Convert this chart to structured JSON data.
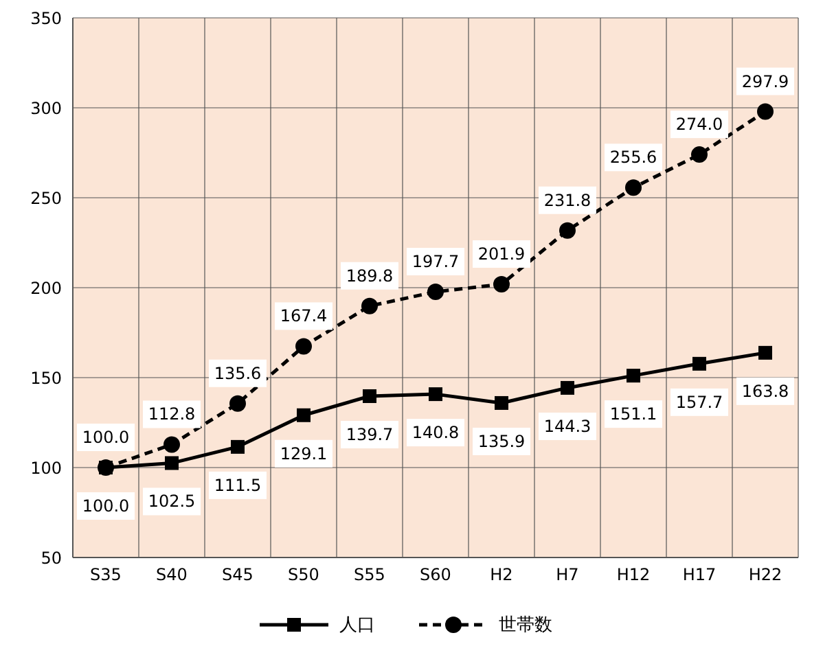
{
  "chart_data": {
    "type": "line",
    "categories": [
      "S35",
      "S40",
      "S45",
      "S50",
      "S55",
      "S60",
      "H2",
      "H7",
      "H12",
      "H17",
      "H22"
    ],
    "series": [
      {
        "name": "人口",
        "color": "#000000",
        "marker": "square",
        "line_style": "solid",
        "values": [
          100.0,
          102.5,
          111.5,
          129.1,
          139.7,
          140.8,
          135.9,
          144.3,
          151.1,
          157.7,
          163.8
        ],
        "value_labels": [
          "100.0",
          "102.5",
          "111.5",
          "129.1",
          "139.7",
          "140.8",
          "135.9",
          "144.3",
          "151.1",
          "157.7",
          "163.8"
        ]
      },
      {
        "name": "世帯数",
        "color": "#000000",
        "marker": "circle",
        "line_style": "dashed",
        "values": [
          100.0,
          112.8,
          135.6,
          167.4,
          189.8,
          197.7,
          201.9,
          231.8,
          255.6,
          274.0,
          297.9
        ],
        "value_labels": [
          "100.0",
          "112.8",
          "135.6",
          "167.4",
          "189.8",
          "197.7",
          "201.9",
          "231.8",
          "255.6",
          "274.0",
          "297.9"
        ]
      }
    ],
    "ylim": [
      50,
      350
    ],
    "yticks": [
      50,
      100,
      150,
      200,
      250,
      300,
      350
    ],
    "grid": true,
    "legend": "bottom"
  }
}
